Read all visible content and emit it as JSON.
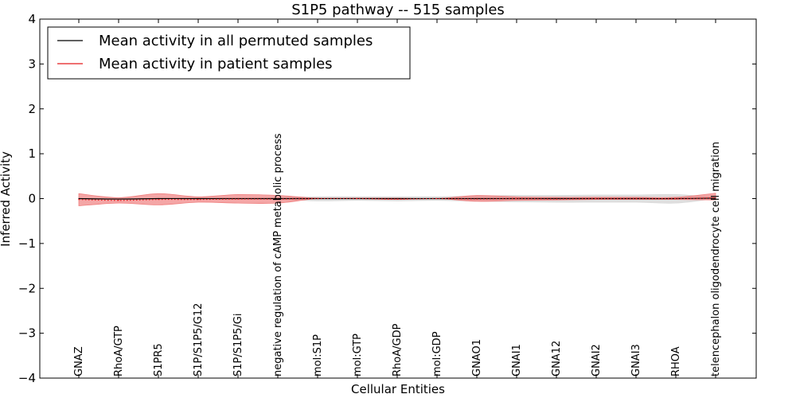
{
  "chart_data": {
    "type": "line",
    "title": "S1P5 pathway -- 515 samples",
    "xlabel": "Cellular Entities",
    "ylabel": "Inferred Activity",
    "ylim": [
      -4,
      4
    ],
    "yticks": [
      -4,
      -3,
      -2,
      -1,
      0,
      1,
      2,
      3,
      4
    ],
    "ytick_labels": [
      "−4",
      "−3",
      "−2",
      "−1",
      "0",
      "1",
      "2",
      "3",
      "4"
    ],
    "categories": [
      "GNAZ",
      "RhoA/GTP",
      "S1PR5",
      "S1P/S1P5/G12",
      "S1P/S1P5/Gi",
      "negative regulation of cAMP metabolic process",
      "mol:S1P",
      "mol:GTP",
      "RhoA/GDP",
      "mol:GDP",
      "GNAO1",
      "GNAI1",
      "GNA12",
      "GNAI2",
      "GNAI3",
      "RHOA",
      "telencephalon oligodendrocyte cell migration"
    ],
    "legend_position": "top-left",
    "series": [
      {
        "name": "Mean activity in all permuted samples",
        "color": "#000000",
        "values": [
          0.0,
          -0.01,
          0.0,
          0.0,
          0.0,
          0.0,
          0.0,
          0.0,
          0.0,
          0.0,
          0.0,
          0.0,
          0.0,
          0.0,
          0.0,
          0.0,
          0.01
        ],
        "band_lower": [
          0.0,
          -0.01,
          0.0,
          0.0,
          0.0,
          -0.02,
          -0.05,
          -0.04,
          -0.05,
          -0.04,
          -0.06,
          -0.07,
          -0.08,
          -0.08,
          -0.08,
          -0.1,
          0.0
        ],
        "band_upper": [
          0.0,
          -0.01,
          0.0,
          0.0,
          0.0,
          0.02,
          0.04,
          0.04,
          0.04,
          0.04,
          0.06,
          0.07,
          0.07,
          0.08,
          0.08,
          0.09,
          0.03
        ],
        "band_color": "#d9d9d9"
      },
      {
        "name": "Mean activity in patient samples",
        "color": "#e41a1c",
        "style": "dotted",
        "values": [
          -0.02,
          -0.04,
          -0.02,
          -0.02,
          -0.01,
          -0.01,
          0.0,
          0.0,
          -0.01,
          0.0,
          -0.01,
          0.0,
          -0.01,
          0.0,
          0.0,
          0.0,
          0.02
        ],
        "band_lower": [
          -0.16,
          -0.1,
          -0.14,
          -0.08,
          -0.1,
          -0.1,
          0.0,
          0.0,
          -0.02,
          0.0,
          -0.06,
          -0.04,
          -0.03,
          -0.02,
          -0.02,
          -0.02,
          -0.03
        ],
        "band_upper": [
          0.11,
          0.02,
          0.11,
          0.04,
          0.09,
          0.07,
          0.01,
          0.01,
          0.01,
          0.0,
          0.07,
          0.04,
          0.03,
          0.03,
          0.03,
          0.03,
          0.12
        ],
        "band_color": "#f08080"
      }
    ]
  }
}
